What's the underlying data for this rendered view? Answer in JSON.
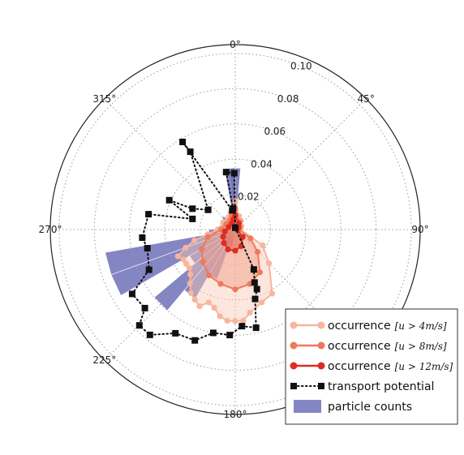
{
  "chart_data": {
    "type": "polar",
    "angular_axis": {
      "direction": "clockwise",
      "zero_at": "top",
      "tick_labels": [
        "0°",
        "45°",
        "90°",
        "180°",
        "225°",
        "270°",
        "315°"
      ],
      "ticks_deg": [
        0,
        45,
        90,
        180,
        225,
        270,
        315
      ]
    },
    "radial_axis": {
      "range": [
        0,
        0.105
      ],
      "ticks": [
        0.02,
        0.04,
        0.06,
        0.08,
        0.1
      ],
      "tick_labels": [
        "0.02",
        "0.04",
        "0.06",
        "0.08",
        "0.10"
      ],
      "label_angle_deg": 22,
      "grid": "dotted"
    },
    "legend": {
      "position": "bottom-right",
      "entries": [
        {
          "label": "occurrence",
          "math": "[u > 4m/s]",
          "color": "#f7b59e",
          "kind": "line-marker"
        },
        {
          "label": "occurrence",
          "math": "[u > 8m/s]",
          "color": "#ee7a5b",
          "kind": "line-marker"
        },
        {
          "label": "occurrence",
          "math": "[u > 12m/s]",
          "color": "#dd2d20",
          "kind": "line-marker"
        },
        {
          "label": "transport potential",
          "color": "#111111",
          "kind": "dotted-square"
        },
        {
          "label": "particle counts",
          "color": "#6f70b8",
          "kind": "patch"
        }
      ]
    },
    "series": [
      {
        "id": "u4",
        "color": "#f7b59e",
        "fill": "#f9c8b6",
        "points": [
          [
            0,
            0.016
          ],
          [
            15,
            0.008
          ],
          [
            30,
            0.006
          ],
          [
            60,
            0.004
          ],
          [
            90,
            0.003
          ],
          [
            120,
            0.018
          ],
          [
            135,
            0.027
          ],
          [
            150,
            0.042
          ],
          [
            160,
            0.044
          ],
          [
            170,
            0.048
          ],
          [
            175,
            0.052
          ],
          [
            180,
            0.052
          ],
          [
            185,
            0.052
          ],
          [
            190,
            0.05
          ],
          [
            195,
            0.046
          ],
          [
            200,
            0.044
          ],
          [
            205,
            0.048
          ],
          [
            210,
            0.046
          ],
          [
            215,
            0.044
          ],
          [
            220,
            0.04
          ],
          [
            225,
            0.036
          ],
          [
            230,
            0.034
          ],
          [
            235,
            0.034
          ],
          [
            240,
            0.034
          ],
          [
            245,
            0.036
          ],
          [
            250,
            0.03
          ],
          [
            255,
            0.024
          ],
          [
            260,
            0.016
          ],
          [
            270,
            0.01
          ],
          [
            300,
            0.008
          ],
          [
            330,
            0.008
          ],
          [
            345,
            0.01
          ]
        ]
      },
      {
        "id": "u8",
        "color": "#ee7a5b",
        "fill": "#f29a7f",
        "points": [
          [
            0,
            0.012
          ],
          [
            30,
            0.005
          ],
          [
            60,
            0.003
          ],
          [
            90,
            0.002
          ],
          [
            120,
            0.01
          ],
          [
            135,
            0.018
          ],
          [
            150,
            0.028
          ],
          [
            165,
            0.032
          ],
          [
            180,
            0.034
          ],
          [
            195,
            0.032
          ],
          [
            210,
            0.03
          ],
          [
            225,
            0.026
          ],
          [
            240,
            0.022
          ],
          [
            255,
            0.016
          ],
          [
            270,
            0.008
          ],
          [
            300,
            0.006
          ],
          [
            330,
            0.006
          ],
          [
            345,
            0.008
          ]
        ]
      },
      {
        "id": "u12",
        "color": "#dd2d20",
        "fill": "#e0513a",
        "points": [
          [
            0,
            0.008
          ],
          [
            30,
            0.004
          ],
          [
            60,
            0.002
          ],
          [
            90,
            0.001
          ],
          [
            135,
            0.006
          ],
          [
            160,
            0.01
          ],
          [
            180,
            0.012
          ],
          [
            200,
            0.012
          ],
          [
            220,
            0.01
          ],
          [
            240,
            0.008
          ],
          [
            260,
            0.006
          ],
          [
            290,
            0.004
          ],
          [
            330,
            0.004
          ],
          [
            350,
            0.006
          ]
        ]
      },
      {
        "id": "transport_potential",
        "color": "#111111",
        "points": [
          [
            1,
            0.001
          ],
          [
            155,
            0.025
          ],
          [
            160,
            0.032
          ],
          [
            160,
            0.036
          ],
          [
            164,
            0.041
          ],
          [
            168,
            0.057
          ],
          [
            176,
            0.055
          ],
          [
            183,
            0.06
          ],
          [
            192,
            0.06
          ],
          [
            200,
            0.067
          ],
          [
            210,
            0.068
          ],
          [
            219,
            0.077
          ],
          [
            225,
            0.077
          ],
          [
            229,
            0.068
          ],
          [
            238,
            0.069
          ],
          [
            245,
            0.054
          ],
          [
            258,
            0.051
          ],
          [
            265,
            0.053
          ],
          [
            280,
            0.05
          ],
          [
            284,
            0.025
          ],
          [
            294,
            0.041
          ],
          [
            296,
            0.027
          ],
          [
            306,
            0.019
          ],
          [
            330,
            0.051
          ],
          [
            329,
            0.058
          ],
          [
            351,
            0.011
          ],
          [
            354,
            0.012
          ],
          [
            351,
            0.033
          ],
          [
            359,
            0.032
          ]
        ]
      }
    ],
    "particle_counts": {
      "color": "#6f70b8",
      "bin_width_deg": 10,
      "bins": [
        [
          0,
          0.035
        ],
        [
          45,
          0.002
        ],
        [
          90,
          0.002
        ],
        [
          135,
          0.001
        ],
        [
          180,
          0.004
        ],
        [
          195,
          0.01
        ],
        [
          205,
          0.03
        ],
        [
          215,
          0.045
        ],
        [
          225,
          0.06
        ],
        [
          235,
          0.03
        ],
        [
          245,
          0.075
        ],
        [
          255,
          0.075
        ],
        [
          265,
          0.015
        ],
        [
          275,
          0.01
        ],
        [
          285,
          0.008
        ],
        [
          315,
          0.01
        ],
        [
          345,
          0.01
        ],
        [
          355,
          0.035
        ]
      ]
    }
  }
}
